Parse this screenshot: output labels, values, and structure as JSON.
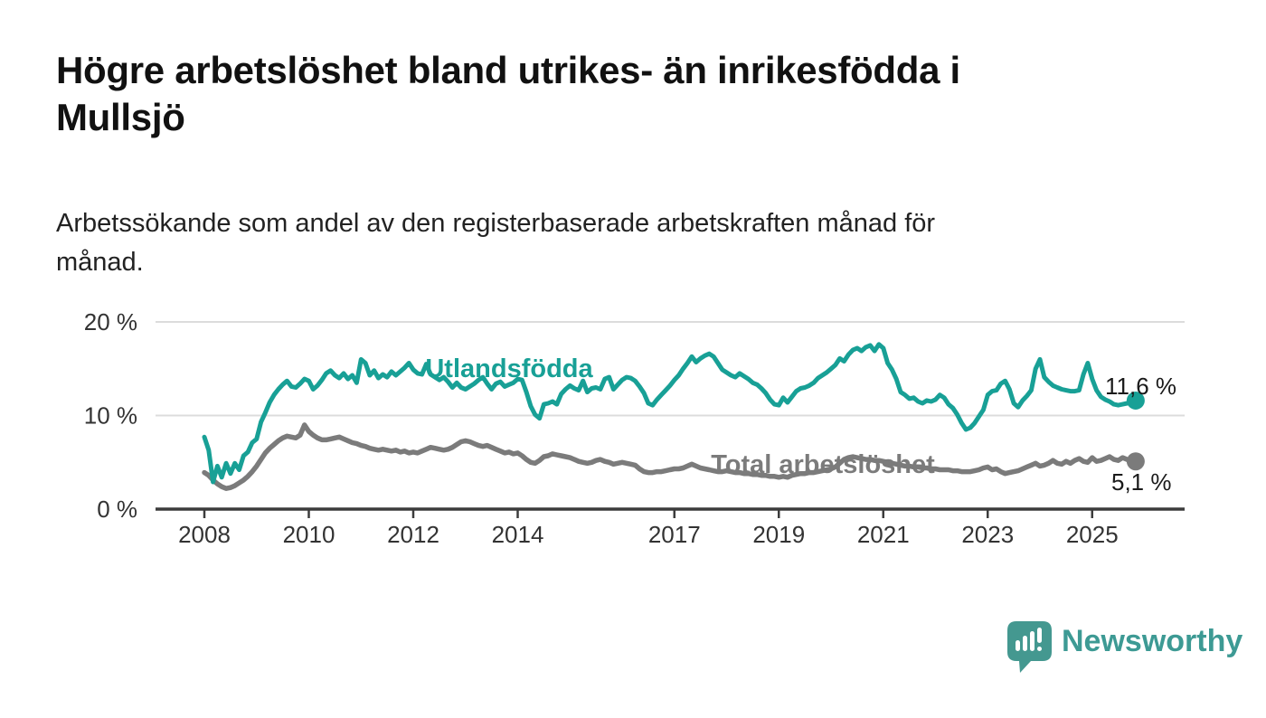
{
  "page": {
    "title": "Högre arbetslöshet bland utrikes- än inrikesfödda i\nMullsjö",
    "subtitle": "Arbetssökande som andel av den registerbaserade arbetskraften månad för\nmånad."
  },
  "branding": {
    "logo_text": "Newsworthy",
    "logo_icon": "bar-chart-speech-bubble-icon",
    "brand_color": "#3d9a94",
    "icon_color": "#449890"
  },
  "colors": {
    "foreign_born_line": "#18a096",
    "total_line": "#7b7b7b",
    "axis_line": "#3c3c3c",
    "gridline": "#dcdcdc",
    "axis_text": "#333333",
    "annotation_text": "#1a1a1a"
  },
  "chart_data": {
    "type": "line",
    "title": "Högre arbetslöshet bland utrikes- än inrikesfödda i Mullsjö",
    "subtitle": "Arbetssökande som andel av den registerbaserade arbetskraften månad för månad.",
    "unit": "%",
    "grid": "horizontal-only",
    "legend": "inline-labels",
    "x_axis": {
      "frequency": "monthly",
      "start_year": 2008,
      "tick_values": [
        2008,
        2010,
        2012,
        2014,
        2017,
        2019,
        2021,
        2023,
        2025
      ],
      "tick_labels": [
        "2008",
        "2010",
        "2012",
        "2014",
        "2017",
        "2019",
        "2021",
        "2023",
        "2025"
      ]
    },
    "y_axis": {
      "range": [
        0,
        20
      ],
      "ticks": [
        {
          "value": 20,
          "label": "20 %"
        },
        {
          "value": 10,
          "label": "10 %"
        },
        {
          "value": 0,
          "label": "0 %"
        }
      ]
    },
    "series": [
      {
        "name": "Utlandsfödda",
        "color": "#18a096",
        "end_label": "11,6 %",
        "end_value": 11.6,
        "values": [
          7.7,
          6.3,
          2.9,
          4.6,
          3.4,
          4.9,
          3.8,
          4.9,
          4.2,
          5.7,
          6.1,
          7.1,
          7.5,
          9.3,
          10.3,
          11.4,
          12.2,
          12.8,
          13.3,
          13.7,
          13.1,
          13.0,
          13.4,
          13.9,
          13.7,
          12.8,
          13.2,
          13.8,
          14.5,
          14.8,
          14.3,
          14.0,
          14.5,
          13.9,
          14.3,
          13.5,
          16.0,
          15.6,
          14.3,
          14.8,
          14.0,
          14.4,
          14.1,
          14.7,
          14.3,
          14.7,
          15.1,
          15.6,
          14.9,
          14.5,
          14.4,
          15.5,
          14.4,
          14.1,
          13.8,
          14.1,
          13.6,
          13.0,
          13.5,
          13.0,
          12.8,
          13.1,
          13.4,
          13.8,
          14.1,
          13.4,
          12.8,
          13.4,
          13.6,
          13.1,
          13.3,
          13.5,
          13.9,
          13.8,
          12.5,
          11.0,
          10.1,
          9.7,
          11.2,
          11.3,
          11.5,
          11.2,
          12.3,
          12.8,
          13.2,
          12.9,
          12.7,
          13.7,
          12.5,
          12.9,
          13.0,
          12.8,
          13.9,
          14.1,
          12.8,
          13.3,
          13.8,
          14.1,
          14.0,
          13.7,
          13.1,
          12.4,
          11.3,
          11.1,
          11.7,
          12.2,
          12.7,
          13.2,
          13.8,
          14.3,
          15.0,
          15.6,
          16.3,
          15.7,
          16.1,
          16.4,
          16.6,
          16.3,
          15.6,
          14.9,
          14.6,
          14.3,
          14.1,
          14.5,
          14.2,
          13.9,
          13.5,
          13.3,
          12.9,
          12.4,
          11.7,
          11.2,
          11.1,
          11.9,
          11.4,
          12.0,
          12.6,
          12.9,
          13.0,
          13.2,
          13.5,
          14.0,
          14.3,
          14.6,
          15.0,
          15.4,
          16.1,
          15.8,
          16.5,
          17.0,
          17.2,
          16.9,
          17.3,
          17.5,
          16.9,
          17.6,
          17.2,
          15.6,
          14.9,
          13.9,
          12.5,
          12.2,
          11.8,
          11.9,
          11.5,
          11.3,
          11.6,
          11.5,
          11.7,
          12.2,
          11.9,
          11.2,
          10.8,
          10.1,
          9.2,
          8.5,
          8.7,
          9.2,
          9.9,
          10.6,
          12.2,
          12.6,
          12.7,
          13.4,
          13.7,
          12.8,
          11.3,
          10.9,
          11.6,
          12.1,
          12.7,
          15.0,
          16.0,
          14.1,
          13.6,
          13.2,
          13.0,
          12.8,
          12.7,
          12.6,
          12.6,
          12.7,
          14.4,
          15.6,
          13.9,
          12.7,
          12.0,
          11.7,
          11.5,
          11.2,
          11.1,
          11.2,
          11.3,
          11.4,
          11.6
        ]
      },
      {
        "name": "Total arbetslöshet",
        "color": "#7b7b7b",
        "end_label": "5,1 %",
        "end_value": 5.1,
        "values": [
          3.9,
          3.6,
          3.1,
          2.7,
          2.4,
          2.2,
          2.3,
          2.5,
          2.8,
          3.1,
          3.5,
          4.0,
          4.6,
          5.3,
          6.0,
          6.5,
          6.9,
          7.3,
          7.6,
          7.8,
          7.7,
          7.6,
          7.9,
          9.0,
          8.3,
          7.9,
          7.6,
          7.4,
          7.4,
          7.5,
          7.6,
          7.7,
          7.5,
          7.3,
          7.1,
          7.0,
          6.8,
          6.7,
          6.5,
          6.4,
          6.3,
          6.4,
          6.3,
          6.2,
          6.3,
          6.1,
          6.2,
          6.0,
          6.1,
          6.0,
          6.2,
          6.4,
          6.6,
          6.5,
          6.4,
          6.3,
          6.4,
          6.6,
          6.9,
          7.2,
          7.3,
          7.2,
          7.0,
          6.8,
          6.7,
          6.8,
          6.6,
          6.4,
          6.2,
          6.0,
          6.1,
          5.9,
          6.0,
          5.7,
          5.3,
          5.0,
          4.9,
          5.2,
          5.6,
          5.7,
          5.9,
          5.8,
          5.7,
          5.6,
          5.5,
          5.3,
          5.1,
          5.0,
          4.9,
          5.0,
          5.2,
          5.3,
          5.1,
          5.0,
          4.8,
          4.9,
          5.0,
          4.9,
          4.8,
          4.7,
          4.3,
          4.0,
          3.9,
          3.9,
          4.0,
          4.0,
          4.1,
          4.2,
          4.3,
          4.3,
          4.4,
          4.6,
          4.8,
          4.6,
          4.4,
          4.3,
          4.2,
          4.1,
          4.0,
          4.0,
          4.1,
          4.0,
          3.9,
          3.9,
          3.8,
          3.8,
          3.7,
          3.7,
          3.6,
          3.6,
          3.5,
          3.5,
          3.4,
          3.5,
          3.4,
          3.6,
          3.7,
          3.8,
          3.8,
          3.9,
          3.9,
          4.0,
          4.1,
          4.2,
          4.3,
          4.5,
          4.9,
          5.3,
          5.5,
          5.6,
          5.5,
          5.4,
          5.3,
          5.3,
          5.2,
          5.2,
          5.1,
          5.0,
          4.9,
          4.8,
          4.7,
          4.6,
          4.6,
          4.5,
          4.5,
          4.4,
          4.4,
          4.3,
          4.3,
          4.2,
          4.2,
          4.2,
          4.1,
          4.1,
          4.0,
          4.0,
          4.0,
          4.1,
          4.2,
          4.4,
          4.5,
          4.2,
          4.3,
          4.0,
          3.8,
          3.9,
          4.0,
          4.1,
          4.3,
          4.5,
          4.7,
          4.9,
          4.6,
          4.7,
          4.9,
          5.2,
          4.9,
          4.8,
          5.1,
          4.9,
          5.2,
          5.4,
          5.1,
          5.0,
          5.5,
          5.1,
          5.2,
          5.4,
          5.6,
          5.3,
          5.2,
          5.5,
          5.3,
          5.1,
          5.1
        ]
      }
    ]
  }
}
